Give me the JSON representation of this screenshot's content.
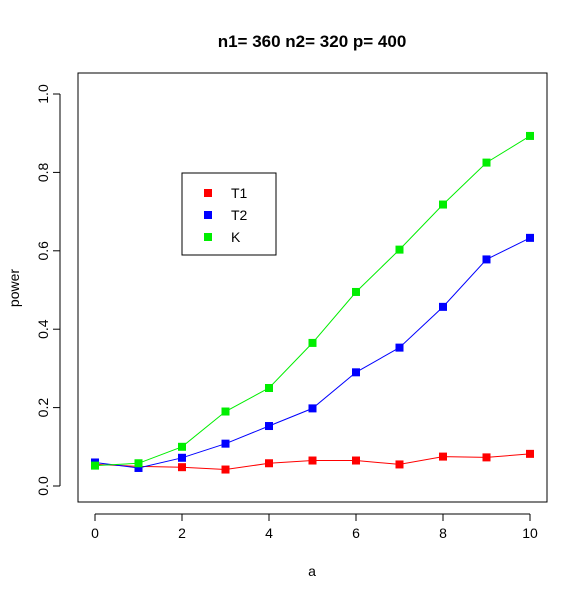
{
  "chart_data": {
    "type": "line",
    "title": "n1= 360 n2= 320 p= 400",
    "xlabel": "a",
    "ylabel": "power",
    "x": [
      0,
      1,
      2,
      3,
      4,
      5,
      6,
      7,
      8,
      9,
      10
    ],
    "xlim": [
      0,
      10
    ],
    "ylim": [
      0,
      1
    ],
    "xticks": [
      "0",
      "2",
      "4",
      "6",
      "8",
      "10"
    ],
    "yticks": [
      "0.0",
      "0.2",
      "0.4",
      "0.6",
      "0.8",
      "1.0"
    ],
    "grid": false,
    "legend_position": "upper-left",
    "series": [
      {
        "name": "T1",
        "color": "#ff0000",
        "values": [
          0.055,
          0.05,
          0.048,
          0.042,
          0.058,
          0.065,
          0.065,
          0.055,
          0.075,
          0.073,
          0.082
        ]
      },
      {
        "name": "T2",
        "color": "#0000ff",
        "values": [
          0.06,
          0.046,
          0.072,
          0.108,
          0.153,
          0.198,
          0.29,
          0.353,
          0.457,
          0.578,
          0.633
        ]
      },
      {
        "name": "K",
        "color": "#00ee00",
        "values": [
          0.052,
          0.058,
          0.1,
          0.19,
          0.25,
          0.365,
          0.495,
          0.603,
          0.718,
          0.825,
          0.893
        ]
      }
    ]
  }
}
